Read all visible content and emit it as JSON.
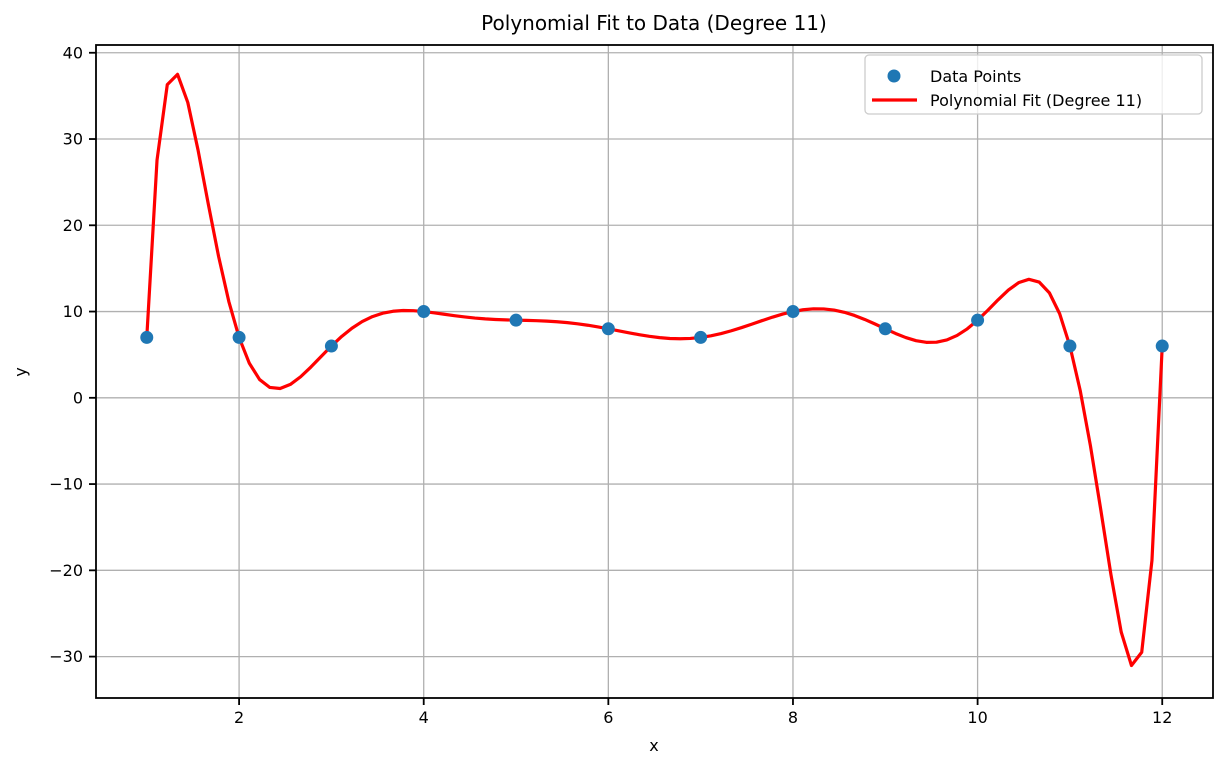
{
  "chart_data": {
    "type": "scatter+line",
    "title": "Polynomial Fit to Data (Degree 11)",
    "xlabel": "x",
    "ylabel": "y",
    "xlim": [
      0.45,
      12.55
    ],
    "ylim": [
      -34.8,
      40.9
    ],
    "grid": true,
    "grid_color": "#b0b0b0",
    "spine_color": "#000000",
    "background_color": "#ffffff",
    "x_ticks": {
      "values": [
        2,
        4,
        6,
        8,
        10,
        12
      ],
      "labels": [
        "2",
        "4",
        "6",
        "8",
        "10",
        "12"
      ]
    },
    "y_ticks": {
      "values": [
        -30,
        -20,
        -10,
        0,
        10,
        20,
        30,
        40
      ],
      "labels": [
        "−30",
        "−20",
        "−10",
        "0",
        "10",
        "20",
        "30",
        "40"
      ]
    },
    "legend": {
      "position": "upper right",
      "entries": [
        "Data Points",
        "Polynomial Fit (Degree 11)"
      ],
      "border_color": "#cccccc",
      "background_color": "#ffffff"
    },
    "series": [
      {
        "name": "Data Points",
        "type": "scatter",
        "color": "#1f77b4",
        "x": [
          1,
          2,
          3,
          4,
          5,
          6,
          7,
          8,
          9,
          10,
          11,
          12
        ],
        "y": [
          7,
          7,
          6,
          10,
          9,
          8,
          7,
          10,
          8,
          9,
          6,
          6
        ]
      },
      {
        "name": "Polynomial Fit (Degree 11)",
        "type": "line",
        "color": "#ff0000",
        "fit_method": "degree-11 polynomial interpolation through Data Points",
        "polynomial_degree": 11,
        "x_range": [
          1,
          12
        ],
        "sample_count": 100,
        "observed_extrema": [
          [
            1.33,
            37.5
          ],
          [
            2.4,
            1.1
          ],
          [
            8.35,
            10.3
          ],
          [
            10.56,
            13.7
          ],
          [
            11.65,
            -31.0
          ]
        ]
      }
    ]
  }
}
